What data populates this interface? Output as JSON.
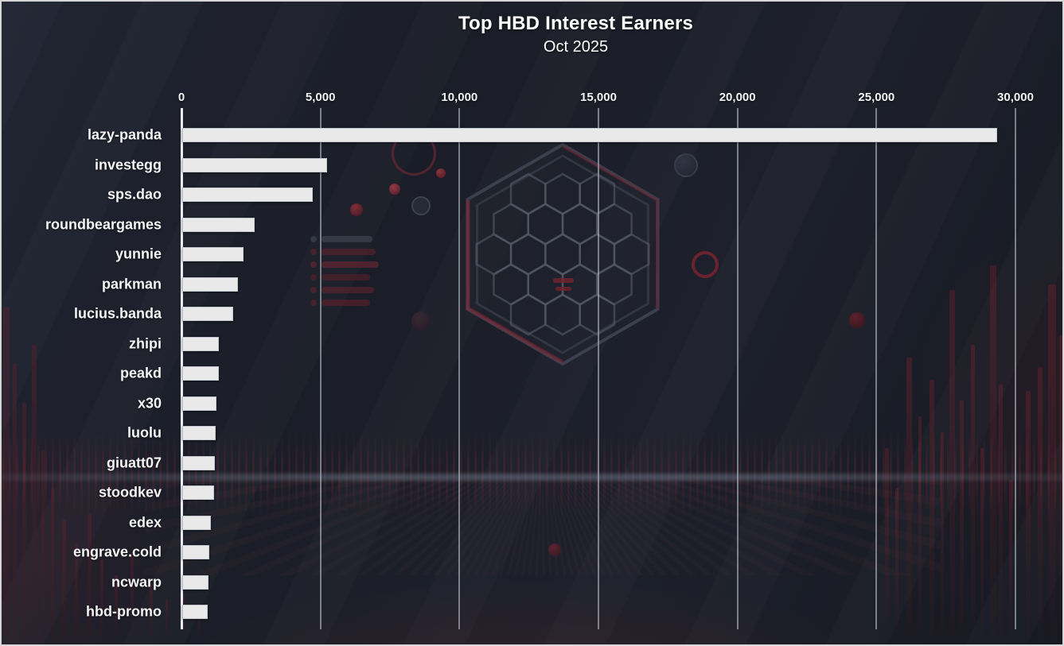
{
  "title": "Top HBD Interest Earners",
  "subtitle": "Oct 2025",
  "chart_data": {
    "type": "bar",
    "orientation": "horizontal",
    "title": "Top HBD Interest Earners",
    "subtitle": "Oct 2025",
    "xlabel": "",
    "ylabel": "",
    "categories": [
      "lazy-panda",
      "investegg",
      "sps.dao",
      "roundbeargames",
      "yunnie",
      "parkman",
      "lucius.banda",
      "zhipi",
      "peakd",
      "x30",
      "luolu",
      "giuatt07",
      "stoodkev",
      "edex",
      "engrave.cold",
      "ncwarp",
      "hbd-promo"
    ],
    "values": [
      29300,
      5200,
      4690,
      2600,
      2200,
      2000,
      1830,
      1330,
      1310,
      1220,
      1190,
      1170,
      1140,
      1040,
      970,
      950,
      910
    ],
    "xlim": [
      0,
      30000
    ],
    "xticks": [
      0,
      5000,
      10000,
      15000,
      20000,
      25000,
      30000
    ],
    "xtick_labels": [
      "0",
      "5,000",
      "10,000",
      "15,000",
      "20,000",
      "25,000",
      "30,000"
    ],
    "grid": true,
    "legend": false,
    "bar_color": "#e9e9ea",
    "background_color": "#1a1d27",
    "text_color": "#ffffff",
    "accent_color": "#7a2430"
  }
}
